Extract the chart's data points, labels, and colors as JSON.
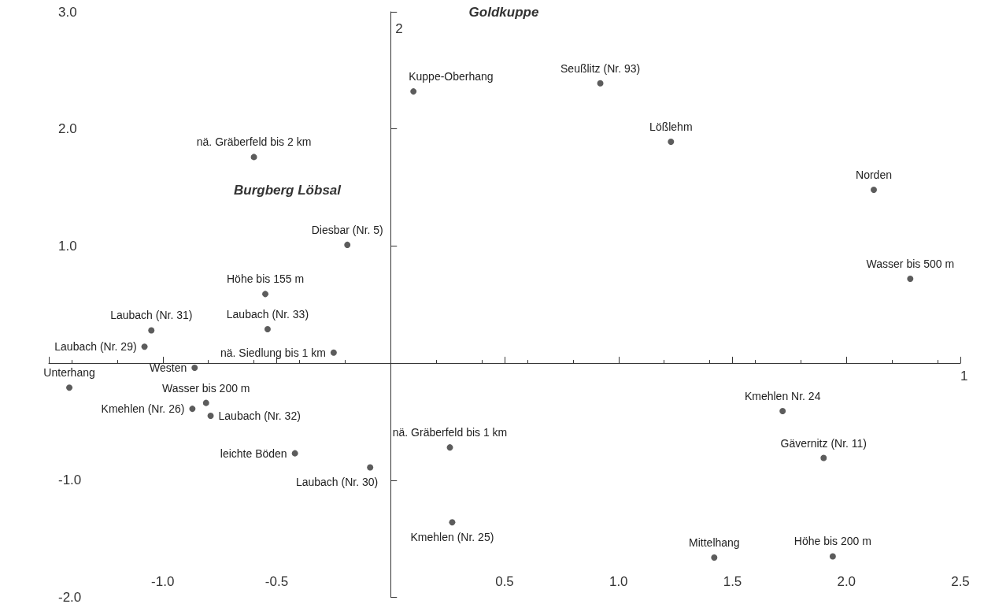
{
  "chart_data": {
    "type": "scatter",
    "xlabel": "1",
    "ylabel": "2",
    "xlim": [
      -1.5,
      2.5
    ],
    "ylim": [
      -2,
      3
    ],
    "xticks": [
      {
        "value": -1.5,
        "label": null
      },
      {
        "value": -1,
        "label": "-1.0"
      },
      {
        "value": -0.5,
        "label": "-0.5"
      },
      {
        "value": 0,
        "label": null
      },
      {
        "value": 0.5,
        "label": "0.5"
      },
      {
        "value": 1,
        "label": "1.0"
      },
      {
        "value": 1.5,
        "label": "1.5"
      },
      {
        "value": 2,
        "label": "2.0"
      },
      {
        "value": 2.5,
        "label": "2.5"
      }
    ],
    "yticks": [
      {
        "value": -2,
        "label": "-2.0"
      },
      {
        "value": -1,
        "label": "-1.0"
      },
      {
        "value": 0,
        "label": null
      },
      {
        "value": 1,
        "label": "1.0"
      },
      {
        "value": 2,
        "label": "2.0"
      },
      {
        "value": 3,
        "label": "3.0"
      }
    ],
    "marker": "circle",
    "series": [
      {
        "color": "#333333",
        "x": [
          0.1,
          0.92,
          1.23,
          2.12,
          2.28,
          -0.6,
          -0.19,
          -0.55,
          -0.54,
          -1.05,
          -1.08,
          -0.25,
          -0.86,
          -1.41,
          -0.81,
          -0.87,
          -0.79,
          -0.42,
          -0.09,
          0.26,
          0.27,
          1.72,
          1.9,
          1.42,
          1.94
        ],
        "values": [
          2.32,
          2.39,
          1.89,
          1.48,
          0.72,
          1.76,
          1.01,
          0.59,
          0.29,
          0.28,
          0.14,
          0.09,
          -0.04,
          -0.21,
          -0.34,
          -0.39,
          -0.45,
          -0.77,
          -0.89,
          -0.72,
          -1.36,
          -0.41,
          -0.81,
          -1.66,
          -1.65
        ]
      }
    ],
    "annotations": [
      "Goldkuppe",
      "Burgberg Löbsal",
      {
        "text": "Kuppe-Oberhang",
        "x": 0.1,
        "y": 2.32
      },
      {
        "text": "Seußlitz (Nr. 93)",
        "x": 0.92,
        "y": 2.39
      },
      {
        "text": "Lößlehm",
        "x": 1.23,
        "y": 1.89
      },
      {
        "text": "Norden",
        "x": 2.12,
        "y": 1.48
      },
      {
        "text": "Wasser bis 500 m",
        "x": 2.28,
        "y": 0.72
      },
      {
        "text": "nä. Gräberfeld bis 2 km",
        "x": -0.6,
        "y": 1.76
      },
      {
        "text": "Diesbar (Nr. 5)",
        "x": -0.19,
        "y": 1.01
      },
      {
        "text": "Höhe bis 155 m",
        "x": -0.55,
        "y": 0.59
      },
      {
        "text": "Laubach (Nr. 33)",
        "x": -0.54,
        "y": 0.29
      },
      {
        "text": "Laubach (Nr. 31)",
        "x": -1.05,
        "y": 0.28
      },
      {
        "text": "Laubach (Nr. 29)",
        "x": -1.08,
        "y": 0.14
      },
      {
        "text": "nä. Siedlung bis 1 km",
        "x": -0.25,
        "y": 0.09
      },
      {
        "text": "Westen",
        "x": -0.86,
        "y": -0.04
      },
      {
        "text": "Unterhang",
        "x": -1.41,
        "y": -0.21
      },
      {
        "text": "Wasser bis 200 m",
        "x": -0.81,
        "y": -0.34
      },
      {
        "text": "Kmehlen (Nr. 26)",
        "x": -0.87,
        "y": -0.39
      },
      {
        "text": "Laubach (Nr. 32)",
        "x": -0.79,
        "y": -0.45
      },
      {
        "text": "leichte Böden",
        "x": -0.42,
        "y": -0.77
      },
      {
        "text": "Laubach (Nr. 30)",
        "x": -0.09,
        "y": -0.89
      },
      {
        "text": "nä. Gräberfeld bis 1 km",
        "x": 0.26,
        "y": -0.72
      },
      {
        "text": "Kmehlen (Nr. 25)",
        "x": 0.27,
        "y": -1.36
      },
      {
        "text": "Kmehlen Nr. 24",
        "x": 1.72,
        "y": -0.41
      },
      {
        "text": "Gävernitz (Nr. 11)",
        "x": 1.9,
        "y": -0.81
      },
      {
        "text": "Mittelhang",
        "x": 1.42,
        "y": -1.66
      },
      {
        "text": "Höhe bis 200 m",
        "x": 1.94,
        "y": -1.65
      }
    ]
  }
}
